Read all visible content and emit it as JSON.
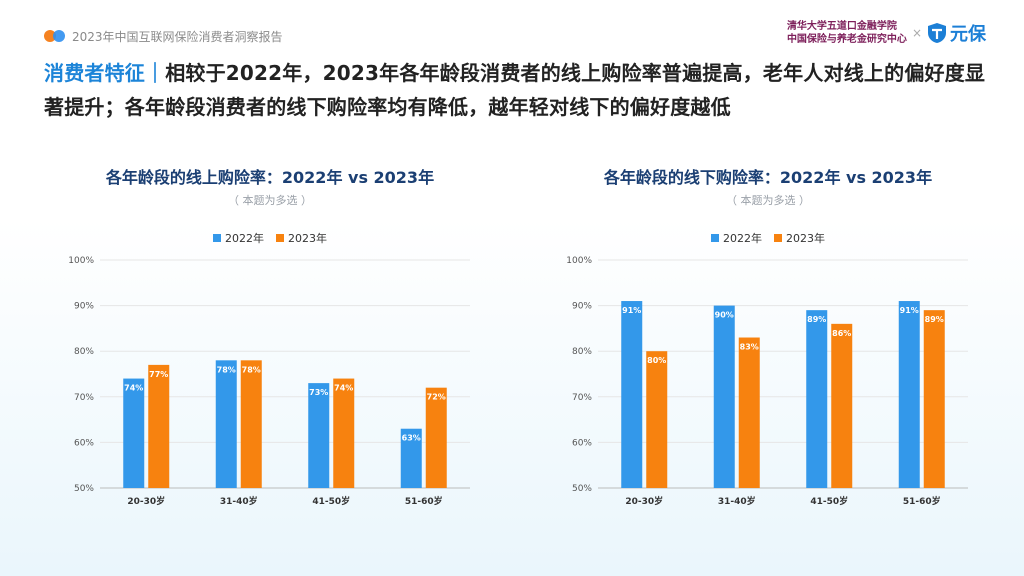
{
  "header": {
    "report_name": "2023年中国互联网保险消费者洞察报告",
    "partner_line1": "清华大学五道口金融学院",
    "partner_line2": "中国保险与养老金研究中心",
    "times_symbol": "×",
    "brand": "元保"
  },
  "headline": {
    "accent": "消费者特征｜",
    "text": "相较于2022年，2023年各年龄段消费者的线上购险率普遍提高，老年人对线上的偏好度显著提升；各年龄段消费者的线下购险率均有降低，越年轻对线下的偏好度越低"
  },
  "colors": {
    "series_2022": "#3398ea",
    "series_2023": "#f7820f"
  },
  "chart_data": [
    {
      "type": "bar",
      "title": "各年龄段的线上购险率：2022年 vs 2023年",
      "note": "（ 本题为多选 ）",
      "categories": [
        "20-30岁",
        "31-40岁",
        "41-50岁",
        "51-60岁"
      ],
      "series": [
        {
          "name": "2022年",
          "values": [
            74,
            78,
            73,
            63
          ]
        },
        {
          "name": "2023年",
          "values": [
            77,
            78,
            74,
            72
          ]
        }
      ],
      "yticks": [
        "50%",
        "60%",
        "70%",
        "80%",
        "90%",
        "100%"
      ],
      "ylim": [
        50,
        100
      ],
      "value_suffix": "%",
      "legend": "top-center",
      "grid": true
    },
    {
      "type": "bar",
      "title": "各年龄段的线下购险率：2022年 vs 2023年",
      "note": "（ 本题为多选 ）",
      "categories": [
        "20-30岁",
        "31-40岁",
        "41-50岁",
        "51-60岁"
      ],
      "series": [
        {
          "name": "2022年",
          "values": [
            91,
            90,
            89,
            91
          ]
        },
        {
          "name": "2023年",
          "values": [
            80,
            83,
            86,
            89
          ]
        }
      ],
      "yticks": [
        "50%",
        "60%",
        "70%",
        "80%",
        "90%",
        "100%"
      ],
      "ylim": [
        50,
        100
      ],
      "value_suffix": "%",
      "legend": "top-center",
      "grid": true
    }
  ]
}
